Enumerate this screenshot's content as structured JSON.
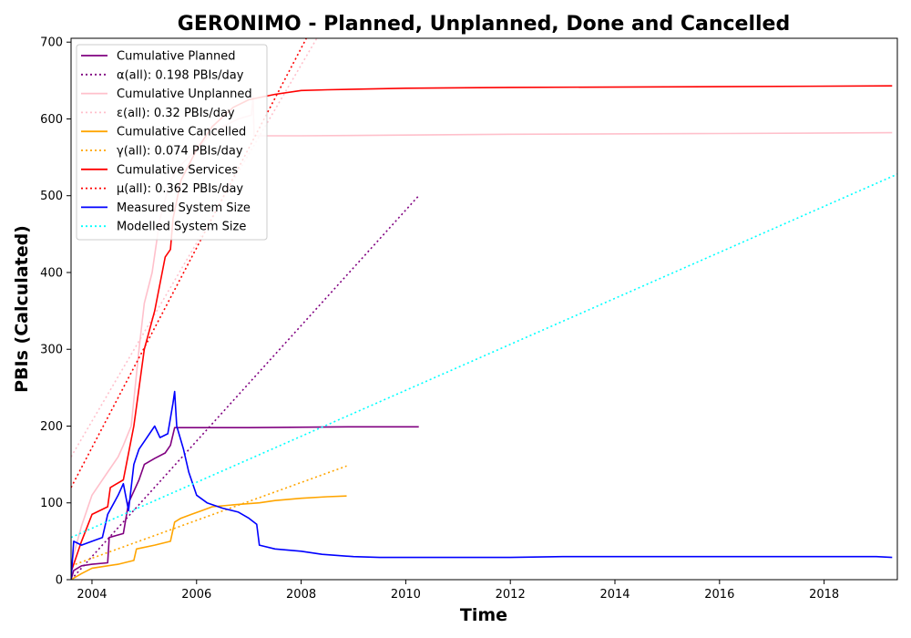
{
  "chart_data": {
    "type": "line",
    "title": "GERONIMO - Planned, Unplanned, Done  and Cancelled",
    "xlabel": "Time",
    "ylabel": "PBIs (Calculated)",
    "xlim": [
      2003.6,
      2019.4
    ],
    "ylim": [
      0,
      705
    ],
    "xticks": [
      2004,
      2006,
      2008,
      2010,
      2012,
      2014,
      2016,
      2018
    ],
    "yticks": [
      0,
      100,
      200,
      300,
      400,
      500,
      600,
      700
    ],
    "grid": false,
    "legend_position": "top-left",
    "series": [
      {
        "name": "Cumulative Planned",
        "style": "solid",
        "color": "#800080",
        "points": [
          [
            2003.6,
            0
          ],
          [
            2003.65,
            12
          ],
          [
            2003.8,
            18
          ],
          [
            2004.0,
            20
          ],
          [
            2004.3,
            22
          ],
          [
            2004.33,
            55
          ],
          [
            2004.6,
            60
          ],
          [
            2004.7,
            100
          ],
          [
            2004.9,
            130
          ],
          [
            2005.0,
            150
          ],
          [
            2005.2,
            158
          ],
          [
            2005.4,
            165
          ],
          [
            2005.5,
            175
          ],
          [
            2005.58,
            198
          ],
          [
            2007.0,
            198
          ],
          [
            2009.0,
            199
          ],
          [
            2010.25,
            199
          ]
        ]
      },
      {
        "name": "α(all): 0.198 PBIs/day",
        "style": "dotted",
        "color": "#800080",
        "points": [
          [
            2003.6,
            0
          ],
          [
            2010.25,
            500
          ]
        ]
      },
      {
        "name": "Cumulative Unplanned",
        "style": "solid",
        "color": "#ffc0cb",
        "points": [
          [
            2003.6,
            20
          ],
          [
            2003.8,
            70
          ],
          [
            2004.0,
            110
          ],
          [
            2004.3,
            140
          ],
          [
            2004.5,
            160
          ],
          [
            2004.6,
            175
          ],
          [
            2004.75,
            200
          ],
          [
            2004.9,
            300
          ],
          [
            2005.0,
            360
          ],
          [
            2005.15,
            400
          ],
          [
            2005.3,
            470
          ],
          [
            2005.5,
            520
          ],
          [
            2005.7,
            540
          ],
          [
            2006.0,
            560
          ],
          [
            2006.2,
            575
          ],
          [
            2006.5,
            590
          ],
          [
            2006.8,
            600
          ],
          [
            2007.05,
            605
          ],
          [
            2007.08,
            630
          ],
          [
            2007.1,
            578
          ],
          [
            2008.0,
            578
          ],
          [
            2010.0,
            579
          ],
          [
            2012.0,
            580
          ],
          [
            2016.0,
            581
          ],
          [
            2019.3,
            582
          ]
        ]
      },
      {
        "name": "ε(all): 0.32 PBIs/day",
        "style": "dotted",
        "color": "#ffc0cb",
        "points": [
          [
            2003.6,
            160
          ],
          [
            2008.3,
            705
          ]
        ]
      },
      {
        "name": "Cumulative Cancelled",
        "style": "solid",
        "color": "#ffa500",
        "points": [
          [
            2003.6,
            0
          ],
          [
            2003.8,
            8
          ],
          [
            2004.0,
            15
          ],
          [
            2004.5,
            20
          ],
          [
            2004.8,
            25
          ],
          [
            2004.85,
            40
          ],
          [
            2005.2,
            45
          ],
          [
            2005.5,
            50
          ],
          [
            2005.58,
            75
          ],
          [
            2005.7,
            80
          ],
          [
            2005.9,
            85
          ],
          [
            2006.1,
            90
          ],
          [
            2006.3,
            95
          ],
          [
            2006.8,
            98
          ],
          [
            2007.2,
            100
          ],
          [
            2007.5,
            103
          ],
          [
            2008.0,
            106
          ],
          [
            2008.5,
            108
          ],
          [
            2008.87,
            109
          ]
        ]
      },
      {
        "name": "γ(all): 0.074 PBIs/day",
        "style": "dotted",
        "color": "#ffa500",
        "points": [
          [
            2003.6,
            18
          ],
          [
            2008.87,
            148
          ]
        ]
      },
      {
        "name": "Cumulative Services",
        "style": "solid",
        "color": "#ff0000",
        "points": [
          [
            2003.6,
            10
          ],
          [
            2003.8,
            50
          ],
          [
            2004.0,
            85
          ],
          [
            2004.3,
            95
          ],
          [
            2004.35,
            120
          ],
          [
            2004.6,
            130
          ],
          [
            2004.8,
            200
          ],
          [
            2005.0,
            300
          ],
          [
            2005.2,
            350
          ],
          [
            2005.4,
            420
          ],
          [
            2005.5,
            430
          ],
          [
            2005.55,
            470
          ],
          [
            2005.7,
            520
          ],
          [
            2006.0,
            560
          ],
          [
            2006.3,
            590
          ],
          [
            2006.7,
            615
          ],
          [
            2007.0,
            625
          ],
          [
            2007.5,
            632
          ],
          [
            2008.0,
            637
          ],
          [
            2008.5,
            638
          ],
          [
            2010.0,
            640
          ],
          [
            2012.0,
            641
          ],
          [
            2016.0,
            642
          ],
          [
            2019.3,
            643
          ]
        ]
      },
      {
        "name": "μ(all): 0.362 PBIs/day",
        "style": "dotted",
        "color": "#ff0000",
        "points": [
          [
            2003.6,
            120
          ],
          [
            2008.1,
            705
          ]
        ]
      },
      {
        "name": "Measured System Size",
        "style": "solid",
        "color": "#0000ff",
        "points": [
          [
            2003.6,
            0
          ],
          [
            2003.65,
            50
          ],
          [
            2003.8,
            45
          ],
          [
            2004.0,
            50
          ],
          [
            2004.2,
            55
          ],
          [
            2004.3,
            85
          ],
          [
            2004.5,
            110
          ],
          [
            2004.6,
            125
          ],
          [
            2004.7,
            90
          ],
          [
            2004.8,
            150
          ],
          [
            2004.9,
            170
          ],
          [
            2005.0,
            180
          ],
          [
            2005.2,
            200
          ],
          [
            2005.3,
            185
          ],
          [
            2005.45,
            190
          ],
          [
            2005.55,
            230
          ],
          [
            2005.58,
            245
          ],
          [
            2005.62,
            200
          ],
          [
            2005.75,
            170
          ],
          [
            2005.85,
            140
          ],
          [
            2006.0,
            110
          ],
          [
            2006.2,
            100
          ],
          [
            2006.5,
            93
          ],
          [
            2006.8,
            88
          ],
          [
            2007.0,
            80
          ],
          [
            2007.15,
            72
          ],
          [
            2007.2,
            45
          ],
          [
            2007.5,
            40
          ],
          [
            2008.0,
            37
          ],
          [
            2008.4,
            33
          ],
          [
            2009.0,
            30
          ],
          [
            2009.5,
            29
          ],
          [
            2010.0,
            29
          ],
          [
            2011.0,
            29
          ],
          [
            2012.0,
            29
          ],
          [
            2013.0,
            30
          ],
          [
            2016.0,
            30
          ],
          [
            2019.0,
            30
          ],
          [
            2019.3,
            29
          ]
        ]
      },
      {
        "name": "Modelled System Size",
        "style": "dotted",
        "color": "#00ffff",
        "points": [
          [
            2003.6,
            55
          ],
          [
            2019.4,
            528
          ]
        ]
      }
    ]
  }
}
